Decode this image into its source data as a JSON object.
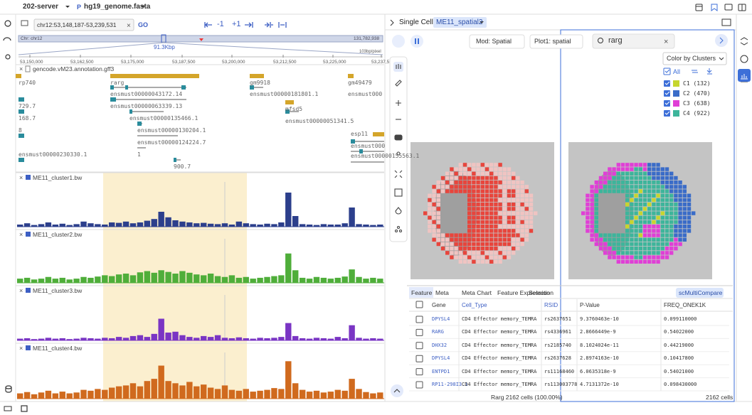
{
  "header": {
    "server": "202-server",
    "genome": "hg19_genome.fasta"
  },
  "browser": {
    "locus": "chr12:53,148,187-53,239,531",
    "go": "GO",
    "zoom_out": "-1",
    "zoom_in": "+1",
    "chromosome": "Chr: chr12",
    "chrom_end": "131,782,938",
    "span": "91.3Kbp",
    "resolution": "103bp/pixel",
    "ruler": [
      "53,150,000",
      "53,162,500",
      "53,175,000",
      "53,187,500",
      "53,200,000",
      "53,212,500",
      "53,225,000",
      "53,237,5"
    ],
    "annotation_track": "gencode.vM23.annotation.gff3",
    "genes": [
      "rp740",
      "rarg",
      "gm9918",
      "gm49479",
      "ensmust00000043172.14",
      "ensmust00000181801.1",
      "ensmust000",
      "729.7",
      "ensmust00000063339.13",
      "mfsd5",
      "168.7",
      "ensmust00000135466.1",
      "ensmust00000051341.5",
      "8",
      "ensmust00000130204.1",
      "esp11",
      "ensmust00000124224.7",
      "ensmust000",
      "ensmust00000155563.1",
      "1",
      "ensmust00000230330.1",
      "900.7"
    ],
    "signal_ylim": [
      0,
      100
    ],
    "tracks": [
      {
        "name": "ME11_cluster1.bw",
        "color": "#2c3f8c",
        "signal": [
          5,
          8,
          4,
          6,
          10,
          5,
          7,
          4,
          6,
          12,
          8,
          6,
          5,
          10,
          9,
          12,
          8,
          10,
          14,
          18,
          35,
          22,
          15,
          12,
          10,
          8,
          9,
          7,
          6,
          8,
          5,
          12,
          8,
          6,
          5,
          7,
          6,
          10,
          80,
          25,
          6,
          5,
          4,
          6,
          5,
          5,
          8,
          45,
          6,
          5,
          4,
          5
        ]
      },
      {
        "name": "ME11_cluster2.bw",
        "color": "#4fae3a",
        "signal": [
          10,
          12,
          8,
          10,
          14,
          10,
          12,
          8,
          10,
          14,
          12,
          15,
          18,
          16,
          20,
          22,
          18,
          25,
          28,
          24,
          30,
          26,
          22,
          28,
          24,
          20,
          18,
          22,
          16,
          14,
          18,
          12,
          14,
          10,
          12,
          14,
          16,
          18,
          70,
          30,
          12,
          10,
          14,
          12,
          10,
          12,
          15,
          32,
          14,
          10,
          12,
          10
        ]
      },
      {
        "name": "ME11_cluster3.bw",
        "color": "#7a35c4",
        "signal": [
          4,
          5,
          3,
          4,
          6,
          4,
          5,
          3,
          4,
          6,
          5,
          4,
          6,
          5,
          8,
          6,
          10,
          12,
          8,
          15,
          50,
          18,
          20,
          12,
          8,
          6,
          10,
          8,
          12,
          6,
          5,
          7,
          5,
          4,
          6,
          5,
          6,
          8,
          40,
          10,
          5,
          4,
          6,
          5,
          4,
          8,
          5,
          35,
          6,
          4,
          5,
          4
        ]
      },
      {
        "name": "ME11_cluster4.bw",
        "color": "#d06a1e",
        "signal": [
          12,
          15,
          10,
          14,
          18,
          12,
          16,
          12,
          14,
          20,
          18,
          22,
          20,
          25,
          28,
          30,
          35,
          28,
          40,
          45,
          75,
          40,
          35,
          30,
          38,
          28,
          32,
          25,
          22,
          30,
          20,
          18,
          22,
          16,
          18,
          20,
          24,
          22,
          85,
          35,
          20,
          16,
          18,
          14,
          16,
          20,
          18,
          45,
          22,
          15,
          12,
          14
        ]
      }
    ]
  },
  "single_cell": {
    "title": "Single Cell",
    "tab": "ME11_spatial2",
    "mod": "Mod: Spatial",
    "plot": "Plot1: spatial",
    "search": "rarg",
    "color_by": "Color by Clusters",
    "all": "All",
    "clusters": [
      {
        "label": "C1 (132)",
        "color": "#c6d62e"
      },
      {
        "label": "C2 (470)",
        "color": "#3a6cc8"
      },
      {
        "label": "C3 (638)",
        "color": "#e03fd6"
      },
      {
        "label": "C4 (922)",
        "color": "#3db59b"
      }
    ],
    "spot_color": "#e8453c",
    "table": {
      "tabs": [
        "Feature",
        "Meta",
        "Meta Chart",
        "Feature Expression",
        "Selection"
      ],
      "action": "scMultiCompare",
      "columns": [
        "Gene",
        "Cell_Type",
        "RSID",
        "P-Value",
        "FREQ_ONEK1K"
      ],
      "rows": [
        [
          "DPYSL4",
          "CD4 Effector memory_TEMRA",
          "rs2637651",
          "9.3760463e-10",
          "0.099110000"
        ],
        [
          "RARG",
          "CD4 Effector memory_TEMRA",
          "rs4336961",
          "2.8666449e-9",
          "0.54022000"
        ],
        [
          "DHX32",
          "CD4 Effector memory_TEMRA",
          "rs2185740",
          "8.1024024e-11",
          "0.44219000"
        ],
        [
          "DPYSL4",
          "CD4 Effector memory_TEMRA",
          "rs2637628",
          "2.8974163e-10",
          "0.10417800"
        ],
        [
          "ENTPD1",
          "CD4 Effector memory_TEMRA",
          "rs11168460",
          "6.0635318e-9",
          "0.54021000"
        ],
        [
          "RP11-298I3.1",
          "CD4 Effector memory_TEMRA",
          "rs113003778",
          "4.7131372e-10",
          "0.098430000"
        ]
      ]
    },
    "footer_selection": "Rarg 2162 cells (100.00%)",
    "footer_total": "2162 cells"
  }
}
